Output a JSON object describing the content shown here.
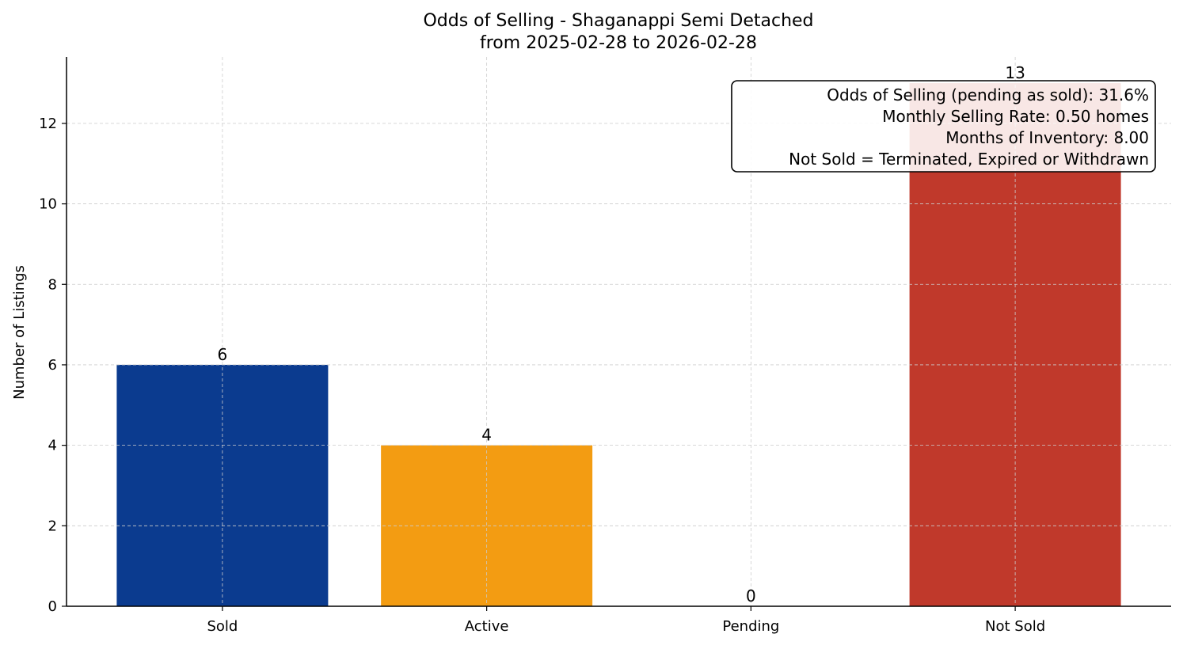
{
  "chart_data": {
    "type": "bar",
    "title": "Odds of Selling - Shaganappi Semi Detached",
    "subtitle": "from 2025-02-28 to 2026-02-28",
    "xlabel": "",
    "ylabel": "Number of Listings",
    "categories": [
      "Sold",
      "Active",
      "Pending",
      "Not Sold"
    ],
    "values": [
      6,
      4,
      0,
      13
    ],
    "data_labels": [
      "6",
      "4",
      "0",
      "13"
    ],
    "colors": [
      "#0b3b8f",
      "#f39c12",
      "#f39c12",
      "#c0392b"
    ],
    "ylim": [
      0,
      13.65
    ],
    "yticks": [
      0,
      2,
      4,
      6,
      8,
      10,
      12
    ],
    "grid": true,
    "annotation": {
      "placement": "top-right",
      "lines": [
        "Odds of Selling (pending as sold): 31.6%",
        "Monthly Selling Rate: 0.50 homes",
        "Months of Inventory: 8.00",
        "Not Sold = Terminated, Expired or Withdrawn"
      ]
    }
  }
}
